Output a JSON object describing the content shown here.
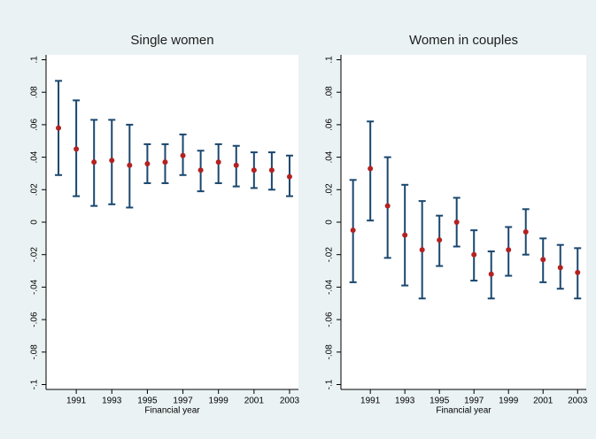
{
  "chart_data": [
    {
      "type": "errorbar",
      "title": "Single women",
      "xlabel": "Financial year",
      "x": [
        1990,
        1991,
        1992,
        1993,
        1994,
        1995,
        1996,
        1997,
        1998,
        1999,
        2000,
        2001,
        2002,
        2003
      ],
      "values": [
        0.058,
        0.045,
        0.037,
        0.038,
        0.035,
        0.036,
        0.037,
        0.041,
        0.032,
        0.037,
        0.035,
        0.032,
        0.032,
        0.028
      ],
      "lower": [
        0.029,
        0.016,
        0.01,
        0.011,
        0.009,
        0.024,
        0.024,
        0.029,
        0.019,
        0.024,
        0.022,
        0.021,
        0.02,
        0.016
      ],
      "upper": [
        0.087,
        0.075,
        0.063,
        0.063,
        0.06,
        0.048,
        0.048,
        0.054,
        0.044,
        0.048,
        0.047,
        0.043,
        0.043,
        0.041
      ],
      "point_color": "#b22222",
      "bar_color": "#1a476f",
      "xlim": [
        1989.3,
        2003.5
      ],
      "xticks": [
        1991,
        1993,
        1995,
        1997,
        1999,
        2001,
        2003
      ],
      "ylim": [
        -0.103,
        0.103
      ],
      "yticks": [
        {
          "value": 0.1,
          "label": ".1"
        },
        {
          "value": 0.08,
          "label": ".08"
        },
        {
          "value": 0.06,
          "label": ".06"
        },
        {
          "value": 0.04,
          "label": ".04"
        },
        {
          "value": 0.02,
          "label": ".02"
        },
        0,
        {
          "value": -0.02,
          "label": "-.02"
        },
        {
          "value": -0.04,
          "label": "-.04"
        },
        {
          "value": -0.06,
          "label": "-.06"
        },
        {
          "value": -0.08,
          "label": "-.08"
        },
        {
          "value": -0.1,
          "label": "-.1"
        }
      ],
      "grid": false
    },
    {
      "type": "errorbar",
      "title": "Women in couples",
      "xlabel": "Financial year",
      "x": [
        1990,
        1991,
        1992,
        1993,
        1994,
        1995,
        1996,
        1997,
        1998,
        1999,
        2000,
        2001,
        2002,
        2003
      ],
      "values": [
        -0.005,
        0.033,
        0.01,
        -0.008,
        -0.017,
        -0.011,
        0,
        -0.02,
        -0.032,
        -0.017,
        -0.006,
        -0.023,
        -0.028,
        -0.031
      ],
      "lower": [
        -0.037,
        0.001,
        -0.022,
        -0.039,
        -0.047,
        -0.027,
        -0.015,
        -0.036,
        -0.047,
        -0.033,
        -0.02,
        -0.037,
        -0.041,
        -0.047
      ],
      "upper": [
        0.026,
        0.062,
        0.04,
        0.023,
        0.013,
        0.004,
        0.015,
        -0.005,
        -0.018,
        -0.003,
        0.008,
        -0.01,
        -0.014,
        -0.016
      ],
      "point_color": "#b22222",
      "bar_color": "#1a476f",
      "xlim": [
        1989.3,
        2003.5
      ],
      "xticks": [
        1991,
        1993,
        1995,
        1997,
        1999,
        2001,
        2003
      ],
      "ylim": [
        -0.103,
        0.103
      ],
      "yticks": [
        {
          "value": 0.1,
          "label": ".1"
        },
        {
          "value": 0.08,
          "label": ".08"
        },
        {
          "value": 0.06,
          "label": ".06"
        },
        {
          "value": 0.04,
          "label": ".04"
        },
        {
          "value": 0.02,
          "label": ".02"
        },
        0,
        {
          "value": -0.02,
          "label": "-.02"
        },
        {
          "value": -0.04,
          "label": "-.04"
        },
        {
          "value": -0.06,
          "label": "-.06"
        },
        {
          "value": -0.08,
          "label": "-.08"
        },
        {
          "value": -0.1,
          "label": "-.1"
        }
      ],
      "grid": false
    }
  ]
}
